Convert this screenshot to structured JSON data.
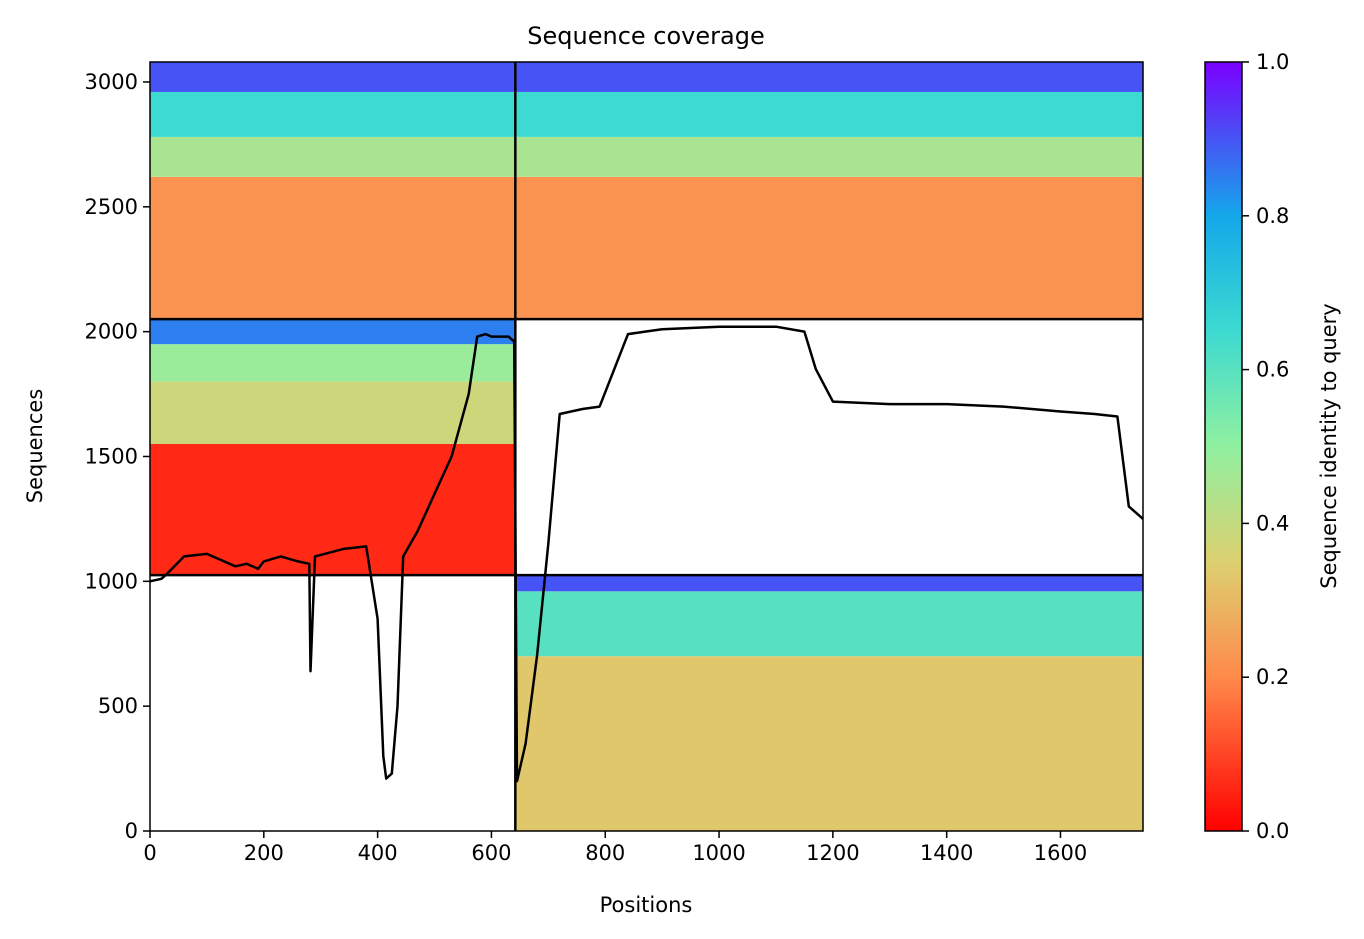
{
  "chart_data": {
    "type": "heatmap",
    "title": "Sequence coverage",
    "xlabel": "Positions",
    "ylabel": "Sequences",
    "colorbar_label": "Sequence identity to query",
    "colormap": "rainbow_r",
    "xlim": [
      0,
      1745
    ],
    "ylim": [
      0,
      3080
    ],
    "x_ticks": [
      0,
      200,
      400,
      600,
      800,
      1000,
      1200,
      1400,
      1600
    ],
    "y_ticks": [
      0,
      500,
      1000,
      1500,
      2000,
      2500,
      3000
    ],
    "colorbar_ticks": [
      0.0,
      0.2,
      0.4,
      0.6,
      0.8,
      1.0
    ],
    "colorbar_tick_labels": [
      "0.0",
      "0.2",
      "0.4",
      "0.6",
      "0.8",
      "1.0"
    ],
    "x_tick_labels": [
      "0",
      "200",
      "400",
      "600",
      "800",
      "1000",
      "1200",
      "1400",
      "1600"
    ],
    "y_tick_labels": [
      "0",
      "500",
      "1000",
      "1500",
      "2000",
      "2500",
      "3000"
    ],
    "chain_boundaries": {
      "x": [
        642
      ],
      "y": [
        1025,
        2050
      ]
    },
    "blocks": [
      {
        "name": "chain1-only",
        "x_range": [
          0,
          642
        ],
        "y_range": [
          2050,
          3080
        ],
        "identity_bands": [
          [
            2050,
            2620,
            0.22
          ],
          [
            2620,
            2780,
            0.45
          ],
          [
            2780,
            2960,
            0.65
          ],
          [
            2960,
            3080,
            0.9
          ]
        ]
      },
      {
        "name": "chain2-only",
        "x_range": [
          642,
          1745
        ],
        "y_range": [
          2050,
          3080
        ],
        "identity_bands": [
          [
            2050,
            2620,
            0.22
          ],
          [
            2620,
            2780,
            0.45
          ],
          [
            2780,
            2960,
            0.65
          ],
          [
            2960,
            3080,
            0.9
          ]
        ]
      },
      {
        "name": "chain1-paired",
        "x_range": [
          0,
          642
        ],
        "y_range": [
          1025,
          2050
        ],
        "identity_bands": [
          [
            1025,
            1550,
            0.06
          ],
          [
            1550,
            1800,
            0.38
          ],
          [
            1800,
            1950,
            0.48
          ],
          [
            1950,
            2050,
            0.85
          ]
        ]
      },
      {
        "name": "chain2-unpaired",
        "x_range": [
          642,
          1745
        ],
        "y_range": [
          0,
          1025
        ],
        "identity_bands": [
          [
            0,
            700,
            0.33
          ],
          [
            700,
            960,
            0.6
          ],
          [
            960,
            1025,
            0.9
          ]
        ]
      }
    ],
    "coverage_line": {
      "x": [
        0,
        20,
        30,
        60,
        100,
        150,
        170,
        190,
        200,
        230,
        260,
        280,
        282,
        290,
        340,
        380,
        400,
        410,
        415,
        425,
        435,
        445,
        470,
        500,
        530,
        560,
        575,
        590,
        600,
        630,
        640,
        645,
        660,
        680,
        700,
        720,
        740,
        760,
        790,
        840,
        870,
        900,
        1000,
        1100,
        1150,
        1170,
        1200,
        1300,
        1400,
        1500,
        1600,
        1660,
        1700,
        1720,
        1745
      ],
      "y": [
        1000,
        1010,
        1030,
        1100,
        1110,
        1060,
        1070,
        1050,
        1080,
        1100,
        1080,
        1070,
        640,
        1100,
        1130,
        1140,
        850,
        300,
        210,
        230,
        500,
        1100,
        1200,
        1350,
        1500,
        1750,
        1980,
        1990,
        1980,
        1980,
        1960,
        200,
        350,
        700,
        1150,
        1670,
        1680,
        1690,
        1700,
        1990,
        2000,
        2010,
        2020,
        2020,
        2000,
        1850,
        1720,
        1710,
        1710,
        1700,
        1680,
        1670,
        1660,
        1300,
        1250
      ]
    }
  }
}
